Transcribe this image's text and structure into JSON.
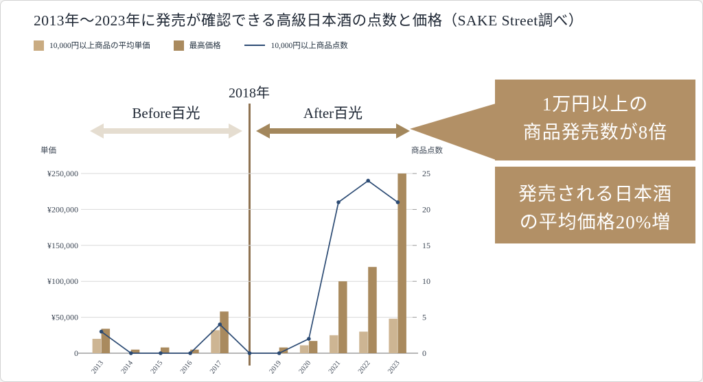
{
  "title": "2013年〜2023年に発売が確認できる高級日本酒の点数と価格（SAKE Street調べ）",
  "legend": [
    {
      "label": "10,000円以上商品の平均単価",
      "swatch": "square",
      "color": "#c9ab81"
    },
    {
      "label": "最高価格",
      "swatch": "square",
      "color": "#a98a5e"
    },
    {
      "label": "10,000円以上商品点数",
      "swatch": "line",
      "color": "#2b4a73"
    }
  ],
  "annotations": {
    "divider_year": "2018年",
    "before_label": "Before百光",
    "after_label": "After百光",
    "callouts": [
      {
        "lines": [
          "1万円以上の",
          "商品発売数が8倍"
        ]
      },
      {
        "lines": [
          "発売される日本酒",
          "の平均価格20%増"
        ]
      }
    ]
  },
  "colors": {
    "before_arrow": "#e5ddd0",
    "after_arrow": "#a3875c",
    "divider_line": "#8f7352",
    "callout_bg": "#b29066",
    "gridline": "#d9d9d9",
    "axis_line": "#8c8c8c",
    "tick_text": "#3c4654"
  },
  "chart_data": {
    "type": "bar+line",
    "categories": [
      "2013",
      "2014",
      "2015",
      "2016",
      "2017",
      "2018",
      "2019",
      "2020",
      "2021",
      "2022",
      "2023"
    ],
    "hidden_x_labels": [
      "2018"
    ],
    "series": [
      {
        "name": "10,000円以上商品の平均単価",
        "type": "bar",
        "axis": "left",
        "color": "#cdb593",
        "values": [
          20000,
          0,
          0,
          0,
          32000,
          0,
          0,
          11000,
          25000,
          30000,
          48000
        ]
      },
      {
        "name": "最高価格",
        "type": "bar",
        "axis": "left",
        "color": "#a98a5e",
        "values": [
          34000,
          5000,
          8000,
          5000,
          58000,
          0,
          8000,
          17000,
          100000,
          120000,
          250000
        ]
      },
      {
        "name": "10,000円以上商品点数",
        "type": "line",
        "axis": "right",
        "color": "#2b4a73",
        "values": [
          3,
          0,
          0,
          0,
          4,
          0,
          0,
          2,
          21,
          24,
          21
        ]
      }
    ],
    "left_axis": {
      "label": "単価",
      "ticks": [
        "¥250,000",
        "¥200,000",
        "¥150,000",
        "¥100,000",
        "¥50,000",
        "0"
      ],
      "max": 250000
    },
    "right_axis": {
      "label": "商品点数",
      "ticks": [
        "25",
        "20",
        "15",
        "10",
        "5",
        "0"
      ],
      "max": 25
    },
    "grid": true,
    "legend_position": "top-left"
  }
}
